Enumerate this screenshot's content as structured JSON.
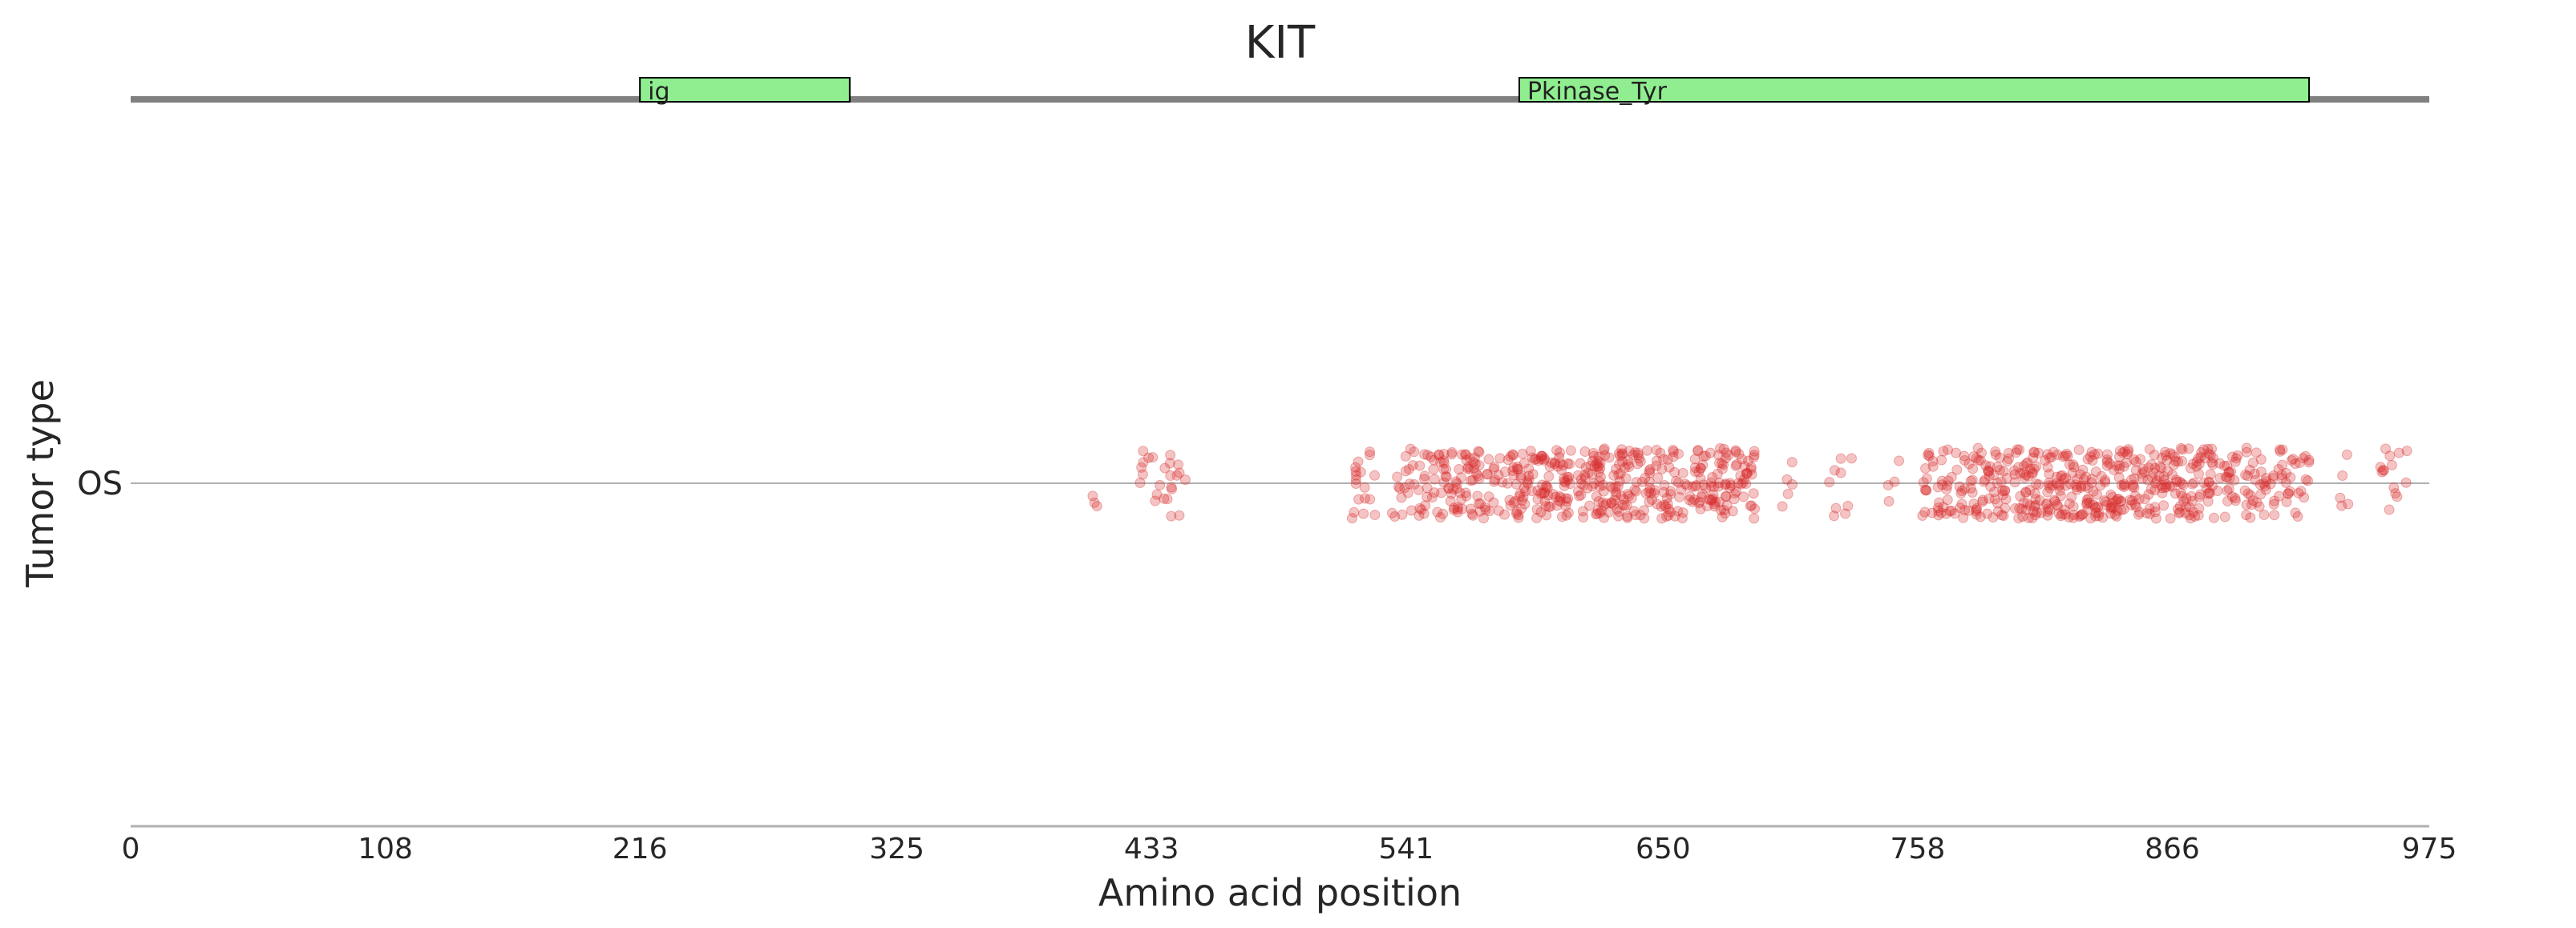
{
  "chart_data": {
    "type": "scatter",
    "title": "KIT",
    "xlabel": "Amino acid position",
    "ylabel": "Tumor type",
    "categories": [
      "OS"
    ],
    "x_range": [
      0,
      975
    ],
    "x_ticks": [
      0,
      108,
      216,
      325,
      433,
      541,
      650,
      758,
      866,
      975
    ],
    "protein_length": 975,
    "domains": [
      {
        "name": "ig",
        "start": 216,
        "end": 305
      },
      {
        "name": "Pkinase_Tyr",
        "start": 589,
        "end": 924
      }
    ],
    "mutation_clusters": [
      {
        "start": 408,
        "end": 410,
        "n": 3
      },
      {
        "start": 427,
        "end": 437,
        "n": 10
      },
      {
        "start": 437,
        "end": 448,
        "n": 14
      },
      {
        "start": 518,
        "end": 528,
        "n": 18
      },
      {
        "start": 535,
        "end": 560,
        "n": 55
      },
      {
        "start": 560,
        "end": 590,
        "n": 90
      },
      {
        "start": 590,
        "end": 620,
        "n": 100
      },
      {
        "start": 620,
        "end": 650,
        "n": 115
      },
      {
        "start": 650,
        "end": 690,
        "n": 130
      },
      {
        "start": 700,
        "end": 705,
        "n": 5
      },
      {
        "start": 718,
        "end": 730,
        "n": 9
      },
      {
        "start": 745,
        "end": 752,
        "n": 4
      },
      {
        "start": 760,
        "end": 790,
        "n": 80
      },
      {
        "start": 790,
        "end": 820,
        "n": 110
      },
      {
        "start": 820,
        "end": 850,
        "n": 120
      },
      {
        "start": 850,
        "end": 880,
        "n": 105
      },
      {
        "start": 880,
        "end": 910,
        "n": 75
      },
      {
        "start": 910,
        "end": 925,
        "n": 30
      },
      {
        "start": 937,
        "end": 942,
        "n": 5
      },
      {
        "start": 954,
        "end": 966,
        "n": 14
      }
    ],
    "point_color": "#d62728",
    "domain_color": "#90ee90",
    "backbone_color": "#808080",
    "grid": false
  }
}
